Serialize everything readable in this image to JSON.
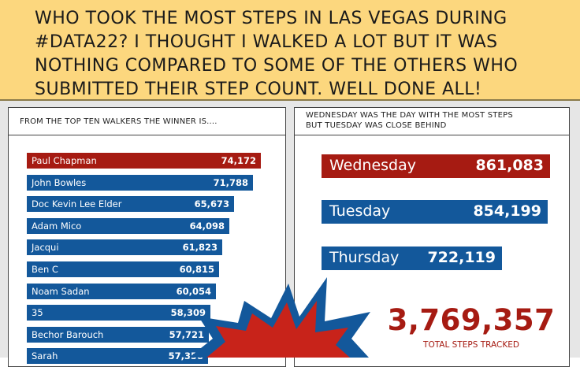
{
  "banner": {
    "text": "WHO TOOK THE MOST STEPS IN LAS VEGAS DURING #DATA22? I THOUGHT I WALKED A LOT BUT IT WAS NOTHING COMPARED TO SOME OF THE OTHERS WHO SUBMITTED THEIR STEP COUNT. WELL DONE ALL!"
  },
  "left_panel": {
    "title": "FROM THE TOP TEN WALKERS THE WINNER IS...."
  },
  "right_panel": {
    "title_line1": "WEDNESDAY WAS THE DAY WITH THE MOST STEPS",
    "title_line2": "BUT TUESDAY WAS CLOSE BEHIND"
  },
  "colors": {
    "winner": "#a61b12",
    "walker": "#13589b",
    "banner": "#fcd77e",
    "starburst_outer": "#13589b",
    "starburst_inner": "#c8231a"
  },
  "chart_data": [
    {
      "type": "bar",
      "orientation": "horizontal",
      "categories": [
        "Paul Chapman",
        "John Bowles",
        "Doc Kevin Lee Elder",
        "Adam Mico",
        "Jacqui",
        "Ben C",
        "Noam Sadan",
        "35",
        "Bechor Barouch",
        "Sarah"
      ],
      "labels": [
        "74,172",
        "71,788",
        "65,673",
        "64,098",
        "61,823",
        "60,815",
        "60,054",
        "58,309",
        "57,721",
        "57,358"
      ],
      "values": [
        74172,
        71788,
        65673,
        64098,
        61823,
        60815,
        60054,
        58309,
        57721,
        57358
      ],
      "title": "FROM THE TOP TEN WALKERS THE WINNER IS....",
      "xlim": [
        0,
        74172
      ]
    },
    {
      "type": "bar",
      "orientation": "horizontal",
      "categories": [
        "Wednesday",
        "Tuesday",
        "Thursday"
      ],
      "labels": [
        "861,083",
        "854,199",
        "722,119"
      ],
      "values": [
        861083,
        854199,
        722119
      ],
      "title": "WEDNESDAY WAS THE DAY WITH THE MOST STEPS BUT TUESDAY WAS CLOSE BEHIND",
      "xlim": [
        0,
        861083
      ]
    }
  ],
  "total": {
    "value": "3,769,357",
    "label": "TOTAL STEPS TRACKED"
  }
}
